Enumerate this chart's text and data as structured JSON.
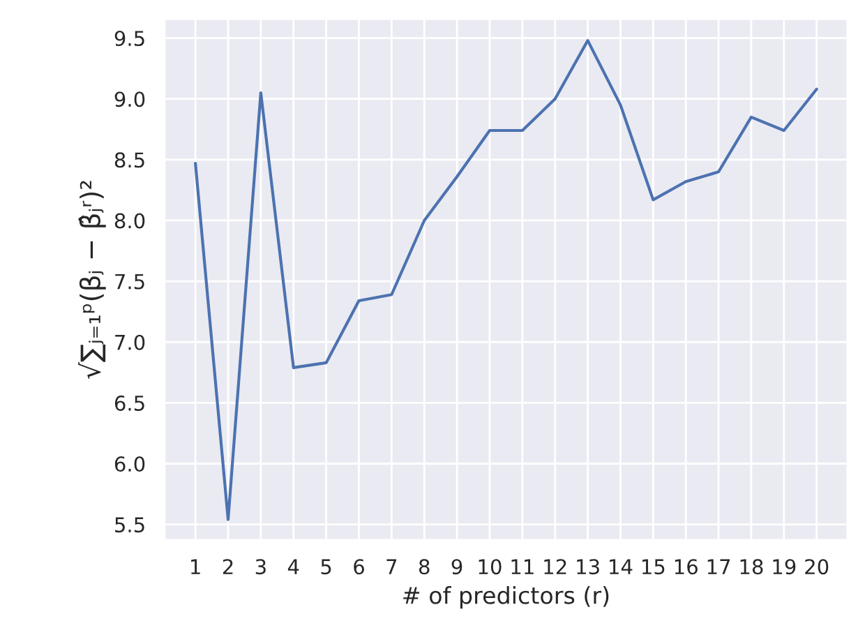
{
  "chart_data": {
    "type": "line",
    "xlabel": "# of predictors (r)",
    "ylabel": "√∑ⱼ₌₁ᵖ(βⱼ − β̂ⱼʳ)²",
    "categories": [
      "1",
      "2",
      "3",
      "4",
      "5",
      "6",
      "7",
      "8",
      "9",
      "10",
      "11",
      "12",
      "13",
      "14",
      "15",
      "16",
      "17",
      "18",
      "19",
      "20"
    ],
    "series": [
      {
        "color": "#4c72b0",
        "values": [
          8.47,
          5.54,
          9.05,
          6.79,
          6.83,
          7.34,
          7.39,
          8.0,
          8.36,
          8.74,
          8.74,
          9.0,
          9.48,
          8.95,
          8.17,
          8.32,
          8.4,
          8.85,
          8.74,
          9.08
        ]
      }
    ],
    "ylim": [
      5.37,
      9.66
    ],
    "yticks": [
      {
        "value": 5.5,
        "label": "5.5"
      },
      {
        "value": 6.0,
        "label": "6.0"
      },
      {
        "value": 6.5,
        "label": "6.5"
      },
      {
        "value": 7.0,
        "label": "7.0"
      },
      {
        "value": 7.5,
        "label": "7.5"
      },
      {
        "value": 8.0,
        "label": "8.0"
      },
      {
        "value": 8.5,
        "label": "8.5"
      },
      {
        "value": 9.0,
        "label": "9.0"
      },
      {
        "value": 9.5,
        "label": "9.5"
      }
    ],
    "grid": true
  }
}
